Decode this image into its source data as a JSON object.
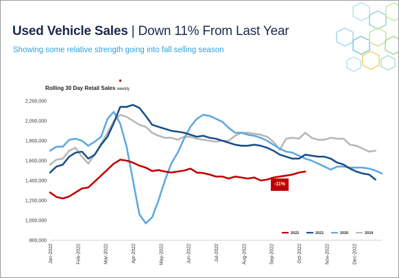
{
  "header": {
    "title_bold": "Used Vehicle Sales",
    "title_rest": " | Down 11% From Last Year",
    "subtitle": "Showing some relative strength going into fall selling season"
  },
  "chart_data": {
    "type": "line",
    "title": "Rolling 30 Day Retail Sales",
    "title_suffix": "weekly",
    "x_ticks": [
      "Jan-2022",
      "Feb-2022",
      "Mar-2022",
      "Apr-2022",
      "May-2022",
      "Jun-2022",
      "Jul-2022",
      "Aug-2022",
      "Sep-2022",
      "Oct-2022",
      "Nov-2022",
      "Dec-2022"
    ],
    "y_ticks": [
      "800,000",
      "1,000,000",
      "1,200,000",
      "1,400,000",
      "1,600,000",
      "1,800,000",
      "2,000,000",
      "2,200,000"
    ],
    "ylim": [
      800000,
      2200000
    ],
    "x_unit": "weeks from Jan-2022",
    "grid": false,
    "legend_position": "bottom-right",
    "annotation": "-11%",
    "series": [
      {
        "name": "2022",
        "color": "#c00000",
        "values": [
          1280000,
          1235000,
          1220000,
          1240000,
          1280000,
          1320000,
          1330000,
          1390000,
          1450000,
          1510000,
          1570000,
          1610000,
          1600000,
          1580000,
          1550000,
          1530000,
          1495000,
          1505000,
          1490000,
          1480000,
          1490000,
          1500000,
          1520000,
          1480000,
          1475000,
          1460000,
          1440000,
          1440000,
          1420000,
          1440000,
          1430000,
          1420000,
          1430000,
          1400000,
          1410000,
          1430000,
          1440000,
          1450000,
          1460000,
          1480000,
          1490000
        ]
      },
      {
        "name": "2021",
        "color": "#1b4f8a",
        "values": [
          1480000,
          1540000,
          1560000,
          1640000,
          1680000,
          1690000,
          1620000,
          1660000,
          1760000,
          1840000,
          1980000,
          2140000,
          2140000,
          2160000,
          2130000,
          2050000,
          1960000,
          1940000,
          1920000,
          1900000,
          1890000,
          1880000,
          1860000,
          1840000,
          1850000,
          1830000,
          1820000,
          1800000,
          1780000,
          1760000,
          1750000,
          1750000,
          1760000,
          1750000,
          1730000,
          1700000,
          1660000,
          1640000,
          1620000,
          1620000,
          1660000,
          1650000,
          1640000,
          1640000,
          1620000,
          1580000,
          1560000,
          1520000,
          1490000,
          1470000,
          1460000,
          1410000
        ]
      },
      {
        "name": "2020",
        "color": "#5ea8e0",
        "values": [
          1700000,
          1740000,
          1740000,
          1810000,
          1820000,
          1800000,
          1750000,
          1790000,
          1840000,
          2020000,
          2090000,
          1970000,
          1740000,
          1400000,
          1060000,
          970000,
          1030000,
          1200000,
          1400000,
          1570000,
          1680000,
          1820000,
          1940000,
          2020000,
          2060000,
          2050000,
          2020000,
          1990000,
          1930000,
          1880000,
          1880000,
          1860000,
          1850000,
          1830000,
          1800000,
          1760000,
          1720000,
          1690000,
          1680000,
          1650000,
          1620000,
          1600000,
          1570000,
          1540000,
          1510000,
          1540000,
          1540000,
          1530000,
          1530000,
          1530000,
          1520000,
          1500000,
          1470000
        ]
      },
      {
        "name": "2019",
        "color": "#b7b7b7",
        "values": [
          1560000,
          1610000,
          1620000,
          1700000,
          1730000,
          1640000,
          1570000,
          1660000,
          1770000,
          1880000,
          2000000,
          2060000,
          2040000,
          2000000,
          1960000,
          1940000,
          1880000,
          1850000,
          1830000,
          1830000,
          1810000,
          1840000,
          1840000,
          1820000,
          1810000,
          1800000,
          1790000,
          1800000,
          1800000,
          1850000,
          1880000,
          1880000,
          1870000,
          1860000,
          1840000,
          1790000,
          1710000,
          1820000,
          1830000,
          1820000,
          1880000,
          1830000,
          1810000,
          1810000,
          1830000,
          1820000,
          1820000,
          1760000,
          1750000,
          1720000,
          1690000,
          1700000
        ]
      }
    ]
  }
}
